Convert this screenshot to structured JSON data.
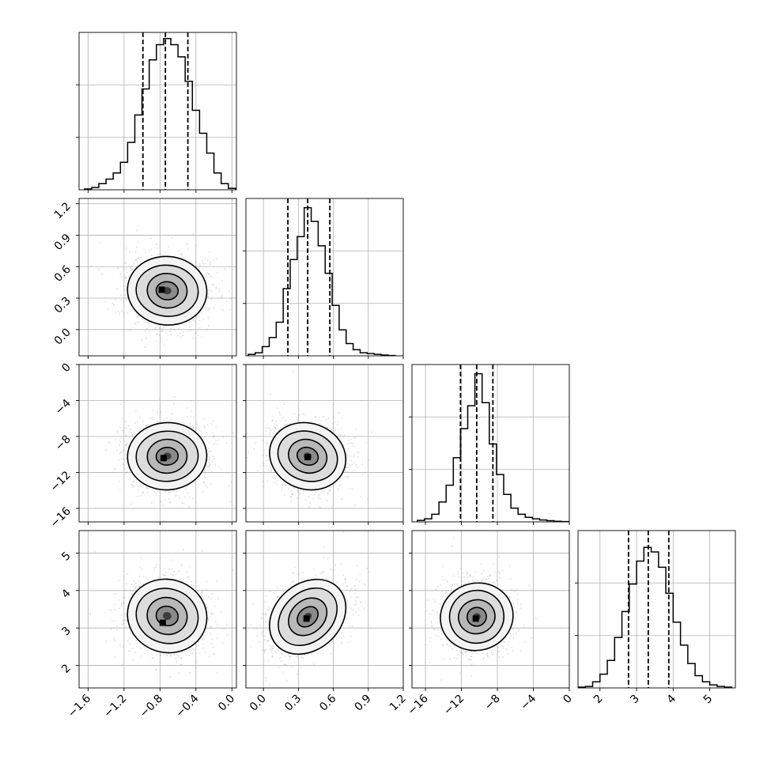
{
  "figure": {
    "type": "corner-plot",
    "params": 4
  },
  "chart_data": [
    {
      "type": "bar",
      "panel": "hist-1",
      "xlim": [
        -1.7,
        0.05
      ],
      "xticks": [
        "−1.6",
        "−1.2",
        "−0.8",
        "−0.4",
        "0.0"
      ],
      "xtick_values": [
        -1.6,
        -1.2,
        -0.8,
        -0.4,
        0.0
      ],
      "bins": [
        -1.6,
        -1.52,
        -1.44,
        -1.36,
        -1.28,
        -1.2,
        -1.12,
        -1.04,
        -0.96,
        -0.88,
        -0.8,
        -0.72,
        -0.64,
        -0.56,
        -0.48,
        -0.4,
        -0.32,
        -0.24,
        -0.16,
        -0.08,
        0.0
      ],
      "values": [
        0.005,
        0.015,
        0.04,
        0.07,
        0.11,
        0.18,
        0.31,
        0.49,
        0.66,
        0.85,
        0.95,
        0.99,
        0.95,
        0.87,
        0.71,
        0.52,
        0.37,
        0.24,
        0.11,
        0.04,
        0.01
      ],
      "quantiles": [
        -0.99,
        -0.74,
        -0.49
      ],
      "ymax": 1.0,
      "grid": true
    },
    {
      "type": "bar",
      "panel": "hist-2",
      "xlim": [
        -0.15,
        1.2
      ],
      "xticks": [
        "0.0",
        "0.3",
        "0.6",
        "0.9",
        "1.2"
      ],
      "xtick_values": [
        0.0,
        0.3,
        0.6,
        0.9,
        1.2
      ],
      "bins": [
        -0.1,
        -0.04,
        0.02,
        0.08,
        0.14,
        0.2,
        0.26,
        0.32,
        0.38,
        0.44,
        0.5,
        0.56,
        0.62,
        0.68,
        0.74,
        0.8,
        0.86,
        0.92,
        0.98,
        1.04,
        1.1
      ],
      "values": [
        0.01,
        0.02,
        0.06,
        0.12,
        0.22,
        0.44,
        0.63,
        0.78,
        0.97,
        0.88,
        0.72,
        0.54,
        0.33,
        0.17,
        0.08,
        0.04,
        0.02,
        0.015,
        0.01,
        0.005,
        0.002
      ],
      "quantiles": [
        0.21,
        0.38,
        0.57
      ],
      "ymax": 1.0,
      "grid": true
    },
    {
      "type": "bar",
      "panel": "hist-3",
      "xlim": [
        -17.5,
        0
      ],
      "xticks": [
        "−16",
        "−12",
        "−8",
        "−4",
        "0"
      ],
      "xtick_values": [
        -16,
        -12,
        -8,
        -4,
        0
      ],
      "bins": [
        -16.5,
        -15.7,
        -14.9,
        -14.1,
        -13.3,
        -12.5,
        -11.7,
        -10.9,
        -10.1,
        -9.3,
        -8.5,
        -7.7,
        -6.9,
        -6.1,
        -5.3,
        -4.5,
        -3.7,
        -2.9,
        -2.1,
        -1.3,
        -0.5
      ],
      "values": [
        0.01,
        0.02,
        0.05,
        0.13,
        0.24,
        0.42,
        0.61,
        0.76,
        0.97,
        0.78,
        0.51,
        0.31,
        0.18,
        0.09,
        0.05,
        0.03,
        0.02,
        0.012,
        0.008,
        0.004,
        0.002
      ],
      "quantiles": [
        -12.1,
        -10.3,
        -8.5
      ],
      "ymax": 1.0,
      "grid": true
    },
    {
      "type": "bar",
      "panel": "hist-4",
      "xlim": [
        1.4,
        5.7
      ],
      "xticks": [
        "2",
        "3",
        "4",
        "5"
      ],
      "xtick_values": [
        2,
        3,
        4,
        5
      ],
      "bins": [
        1.5,
        1.7,
        1.9,
        2.1,
        2.3,
        2.5,
        2.7,
        2.9,
        3.1,
        3.3,
        3.5,
        3.7,
        3.9,
        4.1,
        4.3,
        4.5,
        4.7,
        4.9,
        5.1,
        5.3,
        5.5
      ],
      "values": [
        0.005,
        0.01,
        0.04,
        0.09,
        0.18,
        0.33,
        0.5,
        0.68,
        0.83,
        0.92,
        0.89,
        0.79,
        0.62,
        0.43,
        0.28,
        0.16,
        0.08,
        0.04,
        0.02,
        0.01,
        0.005
      ],
      "quantiles": [
        2.78,
        3.32,
        3.88
      ],
      "ymax": 1.0,
      "grid": true
    },
    {
      "type": "scatter",
      "panel": "2d-2-1",
      "x_param": 1,
      "y_param": 2,
      "ylim": [
        -0.25,
        1.25
      ],
      "yticks": [
        "0.0",
        "0.3",
        "0.6",
        "0.9",
        "1.2"
      ],
      "ytick_values": [
        0.0,
        0.3,
        0.6,
        0.9,
        1.2
      ],
      "mean": [
        -0.72,
        0.37
      ],
      "sd": [
        0.19,
        0.14
      ],
      "rho": -0.03,
      "peak": [
        -0.78,
        0.38
      ]
    },
    {
      "type": "scatter",
      "panel": "2d-3-1",
      "x_param": 1,
      "y_param": 3,
      "ylim": [
        -17.5,
        0
      ],
      "yticks": [
        "−16",
        "−12",
        "−8",
        "−4",
        "0"
      ],
      "ytick_values": [
        -16,
        -12,
        -8,
        -4,
        0
      ],
      "mean": [
        -0.72,
        -10.2
      ],
      "sd": [
        0.19,
        1.6
      ],
      "rho": 0.02,
      "peak": [
        -0.76,
        -10.4
      ]
    },
    {
      "type": "scatter",
      "panel": "2d-3-2",
      "x_param": 2,
      "y_param": 3,
      "mean": [
        0.38,
        -10.2
      ],
      "sd": [
        0.14,
        1.6
      ],
      "rho": -0.1,
      "peak": [
        0.38,
        -10.3
      ]
    },
    {
      "type": "scatter",
      "panel": "2d-4-1",
      "x_param": 1,
      "y_param": 4,
      "ylim": [
        1.4,
        5.6
      ],
      "yticks": [
        "2",
        "3",
        "4",
        "5"
      ],
      "ytick_values": [
        2,
        3,
        4,
        5
      ],
      "mean": [
        -0.72,
        3.32
      ],
      "sd": [
        0.19,
        0.42
      ],
      "rho": -0.05,
      "peak": [
        -0.77,
        3.14
      ]
    },
    {
      "type": "scatter",
      "panel": "2d-4-2",
      "x_param": 2,
      "y_param": 4,
      "mean": [
        0.38,
        3.3
      ],
      "sd": [
        0.14,
        0.42
      ],
      "rho": 0.42,
      "peak": [
        0.37,
        3.25
      ]
    },
    {
      "type": "scatter",
      "panel": "2d-4-3",
      "x_param": 3,
      "y_param": 4,
      "mean": [
        -10.3,
        3.3
      ],
      "sd": [
        1.6,
        0.42
      ],
      "rho": -0.05,
      "peak": [
        -10.4,
        3.25
      ]
    }
  ]
}
